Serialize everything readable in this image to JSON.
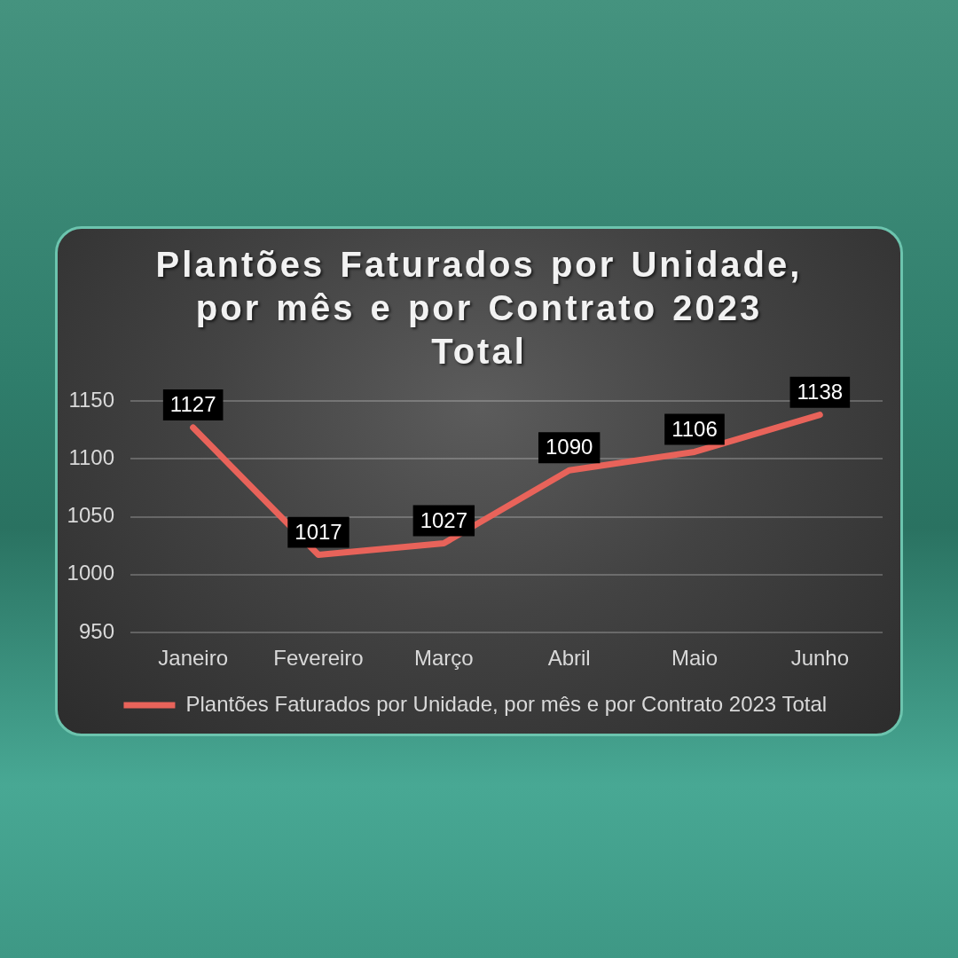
{
  "chart_data": {
    "type": "line",
    "title": "Plantões Faturados por Unidade, por mês e por Contrato 2023 Total",
    "categories": [
      "Janeiro",
      "Fevereiro",
      "Março",
      "Abril",
      "Maio",
      "Junho"
    ],
    "series": [
      {
        "name": "Plantões Faturados por Unidade, por mês e por Contrato 2023 Total",
        "color": "#e8635a",
        "values": [
          1127,
          1017,
          1027,
          1090,
          1106,
          1138
        ]
      }
    ],
    "ylim": [
      950,
      1150
    ],
    "yticks": [
      950,
      1000,
      1050,
      1100,
      1150
    ],
    "grid": "y",
    "legend": "bottom",
    "marker": "none",
    "data_labels": true
  }
}
